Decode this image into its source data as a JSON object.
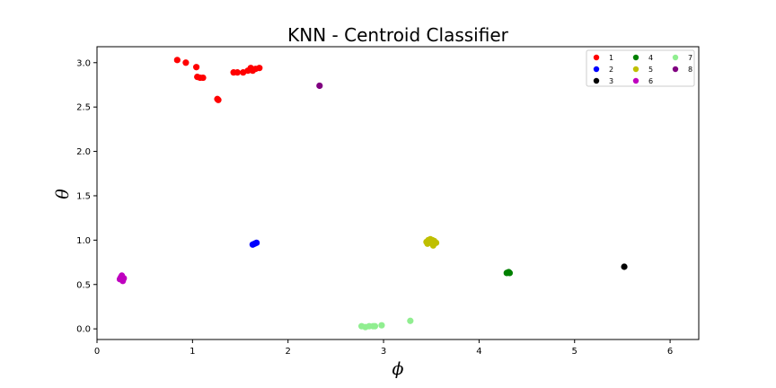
{
  "chart_data": {
    "type": "scatter",
    "title": "KNN - Centroid Classifier",
    "xlabel": "ϕ",
    "ylabel": "θ",
    "xlim": [
      0,
      6.3
    ],
    "ylim": [
      -0.12,
      3.18
    ],
    "xticks": [
      0,
      1,
      2,
      3,
      4,
      5,
      6
    ],
    "yticks": [
      0.0,
      0.5,
      1.0,
      1.5,
      2.0,
      2.5,
      3.0
    ],
    "xtick_labels": [
      "0",
      "1",
      "2",
      "3",
      "4",
      "5",
      "6"
    ],
    "ytick_labels": [
      "0.0",
      "0.5",
      "1.0",
      "1.5",
      "2.0",
      "2.5",
      "3.0"
    ],
    "grid": false,
    "legend_position": "top-right",
    "series": [
      {
        "name": "1",
        "color": "#ff0000",
        "points": [
          [
            0.84,
            3.03
          ],
          [
            0.93,
            3.0
          ],
          [
            1.04,
            2.95
          ],
          [
            1.05,
            2.84
          ],
          [
            1.08,
            2.83
          ],
          [
            1.11,
            2.83
          ],
          [
            1.26,
            2.59
          ],
          [
            1.27,
            2.58
          ],
          [
            1.43,
            2.89
          ],
          [
            1.47,
            2.89
          ],
          [
            1.53,
            2.89
          ],
          [
            1.58,
            2.91
          ],
          [
            1.61,
            2.94
          ],
          [
            1.63,
            2.91
          ],
          [
            1.66,
            2.93
          ],
          [
            1.7,
            2.94
          ]
        ]
      },
      {
        "name": "2",
        "color": "#0000ff",
        "points": [
          [
            1.63,
            0.95
          ],
          [
            1.65,
            0.96
          ],
          [
            1.67,
            0.97
          ]
        ]
      },
      {
        "name": "3",
        "color": "#000000",
        "points": [
          [
            5.52,
            0.7
          ]
        ]
      },
      {
        "name": "4",
        "color": "#008000",
        "points": [
          [
            4.29,
            0.63
          ],
          [
            4.32,
            0.63
          ],
          [
            4.31,
            0.64
          ]
        ]
      },
      {
        "name": "5",
        "color": "#bfbf00",
        "points": [
          [
            3.45,
            0.98
          ],
          [
            3.47,
            1.0
          ],
          [
            3.49,
            1.01
          ],
          [
            3.5,
            0.97
          ],
          [
            3.52,
            0.94
          ],
          [
            3.53,
            0.99
          ],
          [
            3.55,
            0.97
          ],
          [
            3.46,
            0.96
          ],
          [
            3.51,
            1.0
          ]
        ]
      },
      {
        "name": "6",
        "color": "#bf00bf",
        "points": [
          [
            0.24,
            0.56
          ],
          [
            0.25,
            0.58
          ],
          [
            0.26,
            0.6
          ],
          [
            0.27,
            0.55
          ],
          [
            0.28,
            0.57
          ],
          [
            0.27,
            0.54
          ]
        ]
      },
      {
        "name": "7",
        "color": "#90ee90",
        "points": [
          [
            2.77,
            0.03
          ],
          [
            2.81,
            0.02
          ],
          [
            2.85,
            0.03
          ],
          [
            2.89,
            0.03
          ],
          [
            2.91,
            0.03
          ],
          [
            2.98,
            0.04
          ],
          [
            3.28,
            0.09
          ]
        ]
      },
      {
        "name": "8",
        "color": "#800080",
        "points": [
          [
            2.33,
            2.74
          ]
        ]
      }
    ]
  }
}
